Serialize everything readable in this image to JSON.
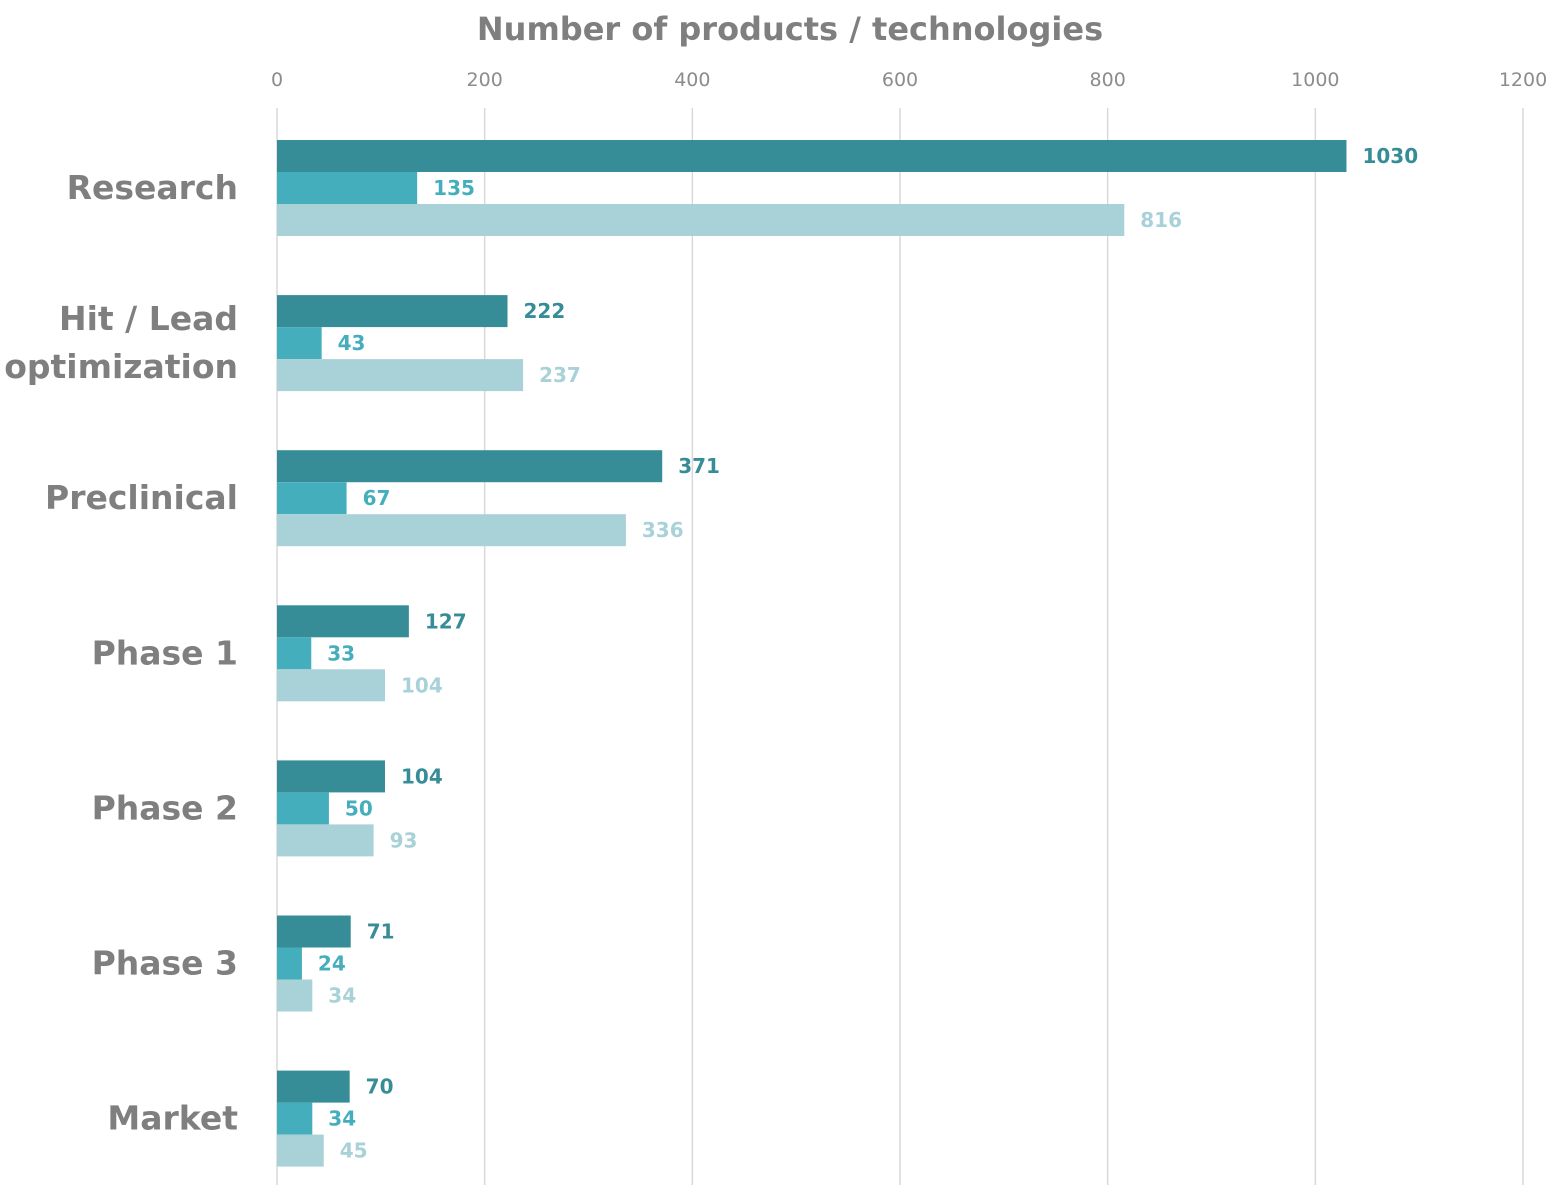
{
  "chart_data": {
    "type": "bar",
    "orientation": "horizontal",
    "xlabel": "Number of products / technologies",
    "xlim": [
      0,
      1200
    ],
    "xticks": [
      0,
      200,
      400,
      600,
      800,
      1000,
      1200
    ],
    "grid": true,
    "categories": [
      [
        "Research"
      ],
      [
        "Hit / Lead",
        "optimization"
      ],
      [
        "Preclinical"
      ],
      [
        "Phase 1"
      ],
      [
        "Phase 2"
      ],
      [
        "Phase 3"
      ],
      [
        "Market"
      ]
    ],
    "series": [
      {
        "color": "#378d97",
        "values": [
          1030,
          222,
          371,
          127,
          104,
          71,
          70
        ]
      },
      {
        "color": "#45aebd",
        "values": [
          135,
          43,
          67,
          33,
          50,
          24,
          34
        ]
      },
      {
        "color": "#a8d1d8",
        "values": [
          816,
          237,
          336,
          104,
          93,
          34,
          45
        ]
      }
    ]
  }
}
